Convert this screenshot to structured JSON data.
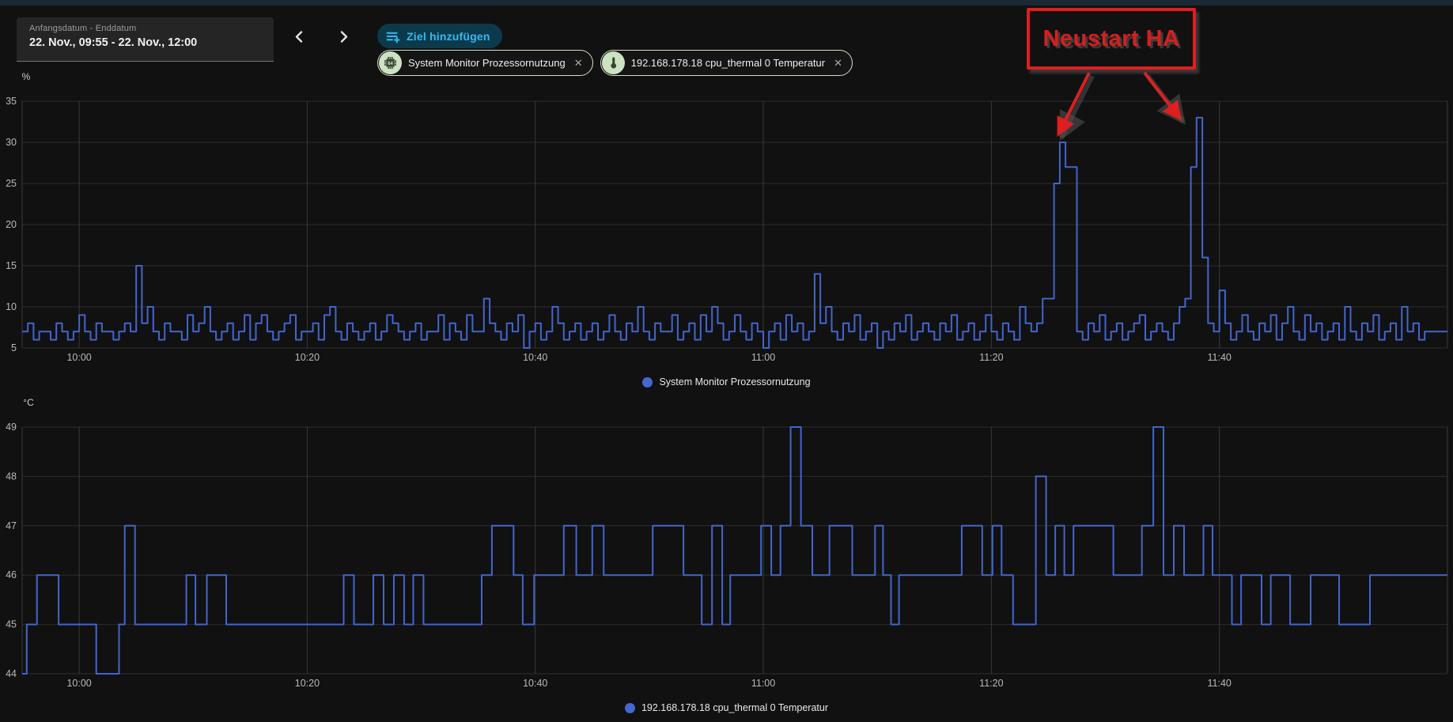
{
  "page": {
    "top_strip_color": "#1a2a35",
    "background": "#111111"
  },
  "toolbar": {
    "date_range": {
      "label": "Anfangsdatum - Enddatum",
      "value": "22. Nov., 09:55 - 22. Nov., 12:00"
    },
    "prev_icon": "chevron-left",
    "next_icon": "chevron-right",
    "add_target": {
      "label": "Ziel hinzufügen",
      "icon": "playlist-plus",
      "text_color": "#35b9f2",
      "bg": "#0c3a4b"
    },
    "chips": [
      {
        "label": "System Monitor Prozessornutzung",
        "icon": "cpu-64-bit",
        "close_icon": "close"
      },
      {
        "label": "192.168.178.18 cpu_thermal 0 Temperatur",
        "icon": "thermometer",
        "close_icon": "close"
      }
    ]
  },
  "annotation": {
    "label": "Neustart HA",
    "color": "#dd1f1f",
    "arrows": [
      {
        "from": [
          1377,
          92
        ],
        "to": [
          1338,
          170
        ]
      },
      {
        "from": [
          1447,
          92
        ],
        "to": [
          1492,
          150
        ]
      }
    ]
  },
  "chart_data": [
    {
      "type": "line",
      "step": true,
      "series_name": "System Monitor Prozessornutzung",
      "legend": "System Monitor Prozessornutzung",
      "unit": "%",
      "color": "#4365cd",
      "grid": true,
      "legend_position": "bottom-center",
      "y_range": [
        5,
        35
      ],
      "y_ticks": [
        35,
        30,
        25,
        20,
        15,
        10,
        5
      ],
      "x_range_minutes": [
        0,
        125
      ],
      "x_start_time": "09:55",
      "x_ticks": [
        {
          "t": 5,
          "label": "10:00"
        },
        {
          "t": 25,
          "label": "10:20"
        },
        {
          "t": 45,
          "label": "10:40"
        },
        {
          "t": 65,
          "label": "11:00"
        },
        {
          "t": 85,
          "label": "11:20"
        },
        {
          "t": 105,
          "label": "11:40"
        }
      ],
      "sample_interval_min": 0.5,
      "values": [
        7,
        8,
        6,
        7,
        7,
        6,
        8,
        7,
        6,
        7,
        9,
        7,
        6,
        8,
        7,
        7,
        6,
        7,
        8,
        7,
        15,
        8,
        10,
        7,
        6,
        8,
        7,
        7,
        6,
        9,
        7,
        8,
        10,
        7,
        6,
        7,
        8,
        6,
        7,
        9,
        6,
        8,
        9,
        7,
        6,
        7,
        8,
        9,
        6,
        7,
        7,
        8,
        6,
        9,
        10,
        7,
        6,
        8,
        7,
        6,
        7,
        8,
        6,
        7,
        9,
        8,
        7,
        6,
        7,
        8,
        6,
        7,
        7,
        9,
        6,
        8,
        7,
        6,
        9,
        7,
        7,
        11,
        8,
        7,
        6,
        8,
        7,
        9,
        5,
        7,
        8,
        6,
        7,
        10,
        8,
        6,
        7,
        8,
        6,
        7,
        8,
        6,
        7,
        9,
        7,
        6,
        8,
        7,
        10,
        7,
        6,
        8,
        7,
        7,
        9,
        6,
        7,
        8,
        6,
        9,
        7,
        10,
        8,
        6,
        7,
        9,
        7,
        6,
        8,
        7,
        5,
        7,
        8,
        6,
        9,
        7,
        8,
        6,
        7,
        14,
        8,
        10,
        7,
        6,
        8,
        7,
        9,
        6,
        7,
        8,
        5,
        7,
        6,
        8,
        7,
        9,
        6,
        7,
        8,
        7,
        6,
        8,
        7,
        9,
        6,
        7,
        8,
        6,
        7,
        9,
        7,
        6,
        8,
        7,
        6,
        10,
        8,
        7,
        8,
        11,
        11,
        25,
        30,
        27,
        27,
        7,
        6,
        8,
        7,
        9,
        6,
        7,
        8,
        6,
        7,
        8,
        9,
        6,
        7,
        8,
        7,
        6,
        8,
        10,
        11,
        27,
        33,
        16,
        8,
        7,
        12,
        8,
        6,
        7,
        9,
        7,
        6,
        8,
        7,
        9,
        6,
        8,
        10,
        7,
        6,
        9,
        7,
        8,
        6,
        7,
        8,
        6,
        10,
        7,
        6,
        8,
        7,
        9,
        6,
        7,
        8,
        6,
        10,
        7,
        8,
        6,
        7
      ]
    },
    {
      "type": "line",
      "step": true,
      "series_name": "192.168.178.18 cpu_thermal 0 Temperatur",
      "legend": "192.168.178.18 cpu_thermal 0 Temperatur",
      "unit": "°C",
      "color": "#4365cd",
      "grid": true,
      "legend_position": "bottom-center",
      "y_range": [
        44,
        49
      ],
      "y_ticks": [
        49,
        48,
        47,
        46,
        45,
        44
      ],
      "x_range_minutes": [
        0,
        125
      ],
      "x_start_time": "09:55",
      "x_ticks": [
        {
          "t": 5,
          "label": "10:00"
        },
        {
          "t": 25,
          "label": "10:20"
        },
        {
          "t": 45,
          "label": "10:40"
        },
        {
          "t": 65,
          "label": "11:00"
        },
        {
          "t": 85,
          "label": "11:20"
        },
        {
          "t": 105,
          "label": "11:40"
        }
      ],
      "points": [
        [
          0,
          44
        ],
        [
          0.4,
          45
        ],
        [
          1.3,
          46
        ],
        [
          3.2,
          45
        ],
        [
          6.5,
          44
        ],
        [
          8.5,
          45
        ],
        [
          9.0,
          47
        ],
        [
          9.9,
          45
        ],
        [
          14.4,
          46
        ],
        [
          15.2,
          45
        ],
        [
          16.2,
          46
        ],
        [
          17.9,
          45
        ],
        [
          28.2,
          46
        ],
        [
          29.1,
          45
        ],
        [
          30.8,
          46
        ],
        [
          31.7,
          45
        ],
        [
          32.6,
          46
        ],
        [
          33.5,
          45
        ],
        [
          34.3,
          46
        ],
        [
          35.2,
          45
        ],
        [
          40.3,
          46
        ],
        [
          41.2,
          47
        ],
        [
          43.1,
          46
        ],
        [
          43.9,
          45
        ],
        [
          44.9,
          46
        ],
        [
          47.5,
          47
        ],
        [
          48.6,
          46
        ],
        [
          50.0,
          47
        ],
        [
          51.0,
          46
        ],
        [
          55.3,
          47
        ],
        [
          58.0,
          46
        ],
        [
          59.6,
          45
        ],
        [
          60.5,
          47
        ],
        [
          61.4,
          45
        ],
        [
          62.1,
          46
        ],
        [
          64.8,
          47
        ],
        [
          65.7,
          46
        ],
        [
          66.5,
          47
        ],
        [
          67.4,
          49
        ],
        [
          68.3,
          47
        ],
        [
          69.3,
          46
        ],
        [
          70.8,
          47
        ],
        [
          72.8,
          46
        ],
        [
          74.8,
          47
        ],
        [
          75.5,
          46
        ],
        [
          76.2,
          45
        ],
        [
          76.9,
          46
        ],
        [
          82.4,
          47
        ],
        [
          84.2,
          46
        ],
        [
          85.1,
          47
        ],
        [
          85.9,
          46
        ],
        [
          86.9,
          45
        ],
        [
          88.9,
          48
        ],
        [
          89.8,
          46
        ],
        [
          90.6,
          47
        ],
        [
          91.4,
          46
        ],
        [
          92.2,
          47
        ],
        [
          95.7,
          46
        ],
        [
          98.2,
          47
        ],
        [
          99.2,
          49
        ],
        [
          100.1,
          46
        ],
        [
          101.0,
          47
        ],
        [
          101.9,
          46
        ],
        [
          103.6,
          47
        ],
        [
          104.4,
          46
        ],
        [
          106.1,
          45
        ],
        [
          106.9,
          46
        ],
        [
          108.7,
          45
        ],
        [
          109.5,
          46
        ],
        [
          111.2,
          45
        ],
        [
          113.0,
          46
        ],
        [
          115.5,
          45
        ],
        [
          118.2,
          46
        ]
      ]
    }
  ]
}
